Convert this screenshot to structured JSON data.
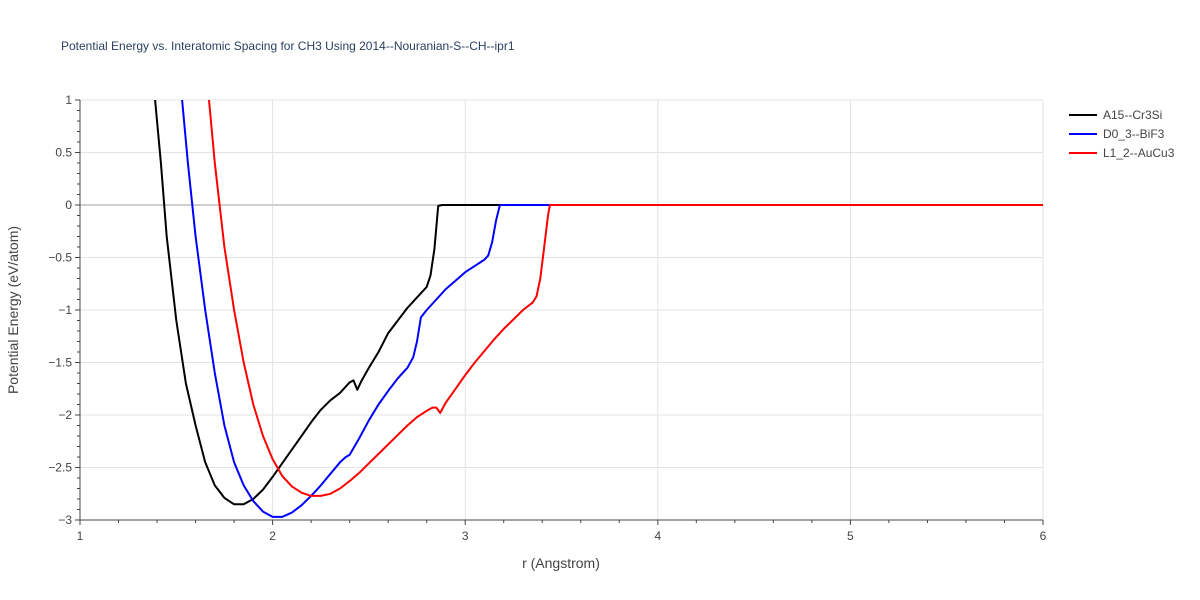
{
  "chart_data": {
    "type": "line",
    "title": "Potential Energy vs. Interatomic Spacing for CH3 Using 2014--Nouranian-S--CH--ipr1",
    "xlabel": "r (Angstrom)",
    "ylabel": "Potential Energy (eV/atom)",
    "xlim": [
      1,
      6
    ],
    "ylim": [
      -3,
      1
    ],
    "x_ticks": [
      1,
      2,
      3,
      4,
      5,
      6
    ],
    "x_tick_labels": [
      "1",
      "2",
      "3",
      "4",
      "5",
      "6"
    ],
    "y_ticks": [
      1,
      0.5,
      0,
      -0.5,
      -1,
      -1.5,
      -2,
      -2.5,
      -3
    ],
    "y_tick_labels": [
      "1",
      "0.5",
      "0",
      "−0.5",
      "−1",
      "−1.5",
      "−2",
      "−2.5",
      "−3"
    ],
    "grid": true,
    "legend_position": "top-right",
    "series": [
      {
        "name": "A15--Cr3Si",
        "color": "#000000",
        "points": [
          [
            1.39,
            1.0
          ],
          [
            1.42,
            0.4
          ],
          [
            1.45,
            -0.3
          ],
          [
            1.5,
            -1.1
          ],
          [
            1.55,
            -1.7
          ],
          [
            1.6,
            -2.1
          ],
          [
            1.65,
            -2.45
          ],
          [
            1.7,
            -2.67
          ],
          [
            1.75,
            -2.79
          ],
          [
            1.8,
            -2.85
          ],
          [
            1.85,
            -2.85
          ],
          [
            1.9,
            -2.8
          ],
          [
            1.95,
            -2.71
          ],
          [
            2.0,
            -2.59
          ],
          [
            2.05,
            -2.46
          ],
          [
            2.1,
            -2.33
          ],
          [
            2.15,
            -2.2
          ],
          [
            2.2,
            -2.07
          ],
          [
            2.25,
            -1.95
          ],
          [
            2.3,
            -1.86
          ],
          [
            2.35,
            -1.79
          ],
          [
            2.38,
            -1.73
          ],
          [
            2.4,
            -1.69
          ],
          [
            2.42,
            -1.67
          ],
          [
            2.44,
            -1.76
          ],
          [
            2.46,
            -1.68
          ],
          [
            2.5,
            -1.55
          ],
          [
            2.55,
            -1.4
          ],
          [
            2.6,
            -1.22
          ],
          [
            2.65,
            -1.1
          ],
          [
            2.7,
            -0.98
          ],
          [
            2.75,
            -0.88
          ],
          [
            2.8,
            -0.78
          ],
          [
            2.82,
            -0.67
          ],
          [
            2.84,
            -0.42
          ],
          [
            2.86,
            -0.01
          ],
          [
            2.88,
            0.0
          ],
          [
            3.0,
            0.0
          ],
          [
            6.0,
            0.0
          ]
        ]
      },
      {
        "name": "D0_3--BiF3",
        "color": "#0000ff",
        "points": [
          [
            1.53,
            1.0
          ],
          [
            1.56,
            0.4
          ],
          [
            1.6,
            -0.3
          ],
          [
            1.65,
            -1.0
          ],
          [
            1.7,
            -1.6
          ],
          [
            1.75,
            -2.1
          ],
          [
            1.8,
            -2.45
          ],
          [
            1.85,
            -2.67
          ],
          [
            1.9,
            -2.82
          ],
          [
            1.95,
            -2.92
          ],
          [
            2.0,
            -2.97
          ],
          [
            2.05,
            -2.97
          ],
          [
            2.1,
            -2.93
          ],
          [
            2.15,
            -2.86
          ],
          [
            2.2,
            -2.77
          ],
          [
            2.25,
            -2.67
          ],
          [
            2.3,
            -2.56
          ],
          [
            2.35,
            -2.45
          ],
          [
            2.38,
            -2.4
          ],
          [
            2.4,
            -2.38
          ],
          [
            2.45,
            -2.22
          ],
          [
            2.5,
            -2.05
          ],
          [
            2.55,
            -1.9
          ],
          [
            2.6,
            -1.77
          ],
          [
            2.65,
            -1.65
          ],
          [
            2.7,
            -1.55
          ],
          [
            2.73,
            -1.45
          ],
          [
            2.75,
            -1.3
          ],
          [
            2.77,
            -1.07
          ],
          [
            2.8,
            -1.0
          ],
          [
            2.85,
            -0.9
          ],
          [
            2.9,
            -0.8
          ],
          [
            2.95,
            -0.72
          ],
          [
            3.0,
            -0.64
          ],
          [
            3.05,
            -0.58
          ],
          [
            3.1,
            -0.52
          ],
          [
            3.12,
            -0.48
          ],
          [
            3.14,
            -0.35
          ],
          [
            3.16,
            -0.15
          ],
          [
            3.18,
            0.0
          ],
          [
            6.0,
            0.0
          ]
        ]
      },
      {
        "name": "L1_2--AuCu3",
        "color": "#ff0000",
        "points": [
          [
            1.67,
            1.0
          ],
          [
            1.7,
            0.4
          ],
          [
            1.75,
            -0.4
          ],
          [
            1.8,
            -1.0
          ],
          [
            1.85,
            -1.5
          ],
          [
            1.9,
            -1.9
          ],
          [
            1.95,
            -2.2
          ],
          [
            2.0,
            -2.42
          ],
          [
            2.05,
            -2.58
          ],
          [
            2.1,
            -2.68
          ],
          [
            2.15,
            -2.74
          ],
          [
            2.2,
            -2.77
          ],
          [
            2.25,
            -2.77
          ],
          [
            2.3,
            -2.75
          ],
          [
            2.35,
            -2.7
          ],
          [
            2.4,
            -2.63
          ],
          [
            2.45,
            -2.55
          ],
          [
            2.5,
            -2.46
          ],
          [
            2.55,
            -2.37
          ],
          [
            2.6,
            -2.28
          ],
          [
            2.65,
            -2.19
          ],
          [
            2.7,
            -2.1
          ],
          [
            2.75,
            -2.02
          ],
          [
            2.8,
            -1.96
          ],
          [
            2.83,
            -1.93
          ],
          [
            2.85,
            -1.93
          ],
          [
            2.87,
            -1.98
          ],
          [
            2.9,
            -1.88
          ],
          [
            2.95,
            -1.75
          ],
          [
            3.0,
            -1.62
          ],
          [
            3.05,
            -1.5
          ],
          [
            3.1,
            -1.39
          ],
          [
            3.15,
            -1.28
          ],
          [
            3.2,
            -1.18
          ],
          [
            3.25,
            -1.09
          ],
          [
            3.3,
            -1.0
          ],
          [
            3.35,
            -0.93
          ],
          [
            3.37,
            -0.87
          ],
          [
            3.39,
            -0.7
          ],
          [
            3.41,
            -0.4
          ],
          [
            3.43,
            -0.1
          ],
          [
            3.44,
            0.0
          ],
          [
            6.0,
            0.0
          ]
        ]
      }
    ]
  }
}
